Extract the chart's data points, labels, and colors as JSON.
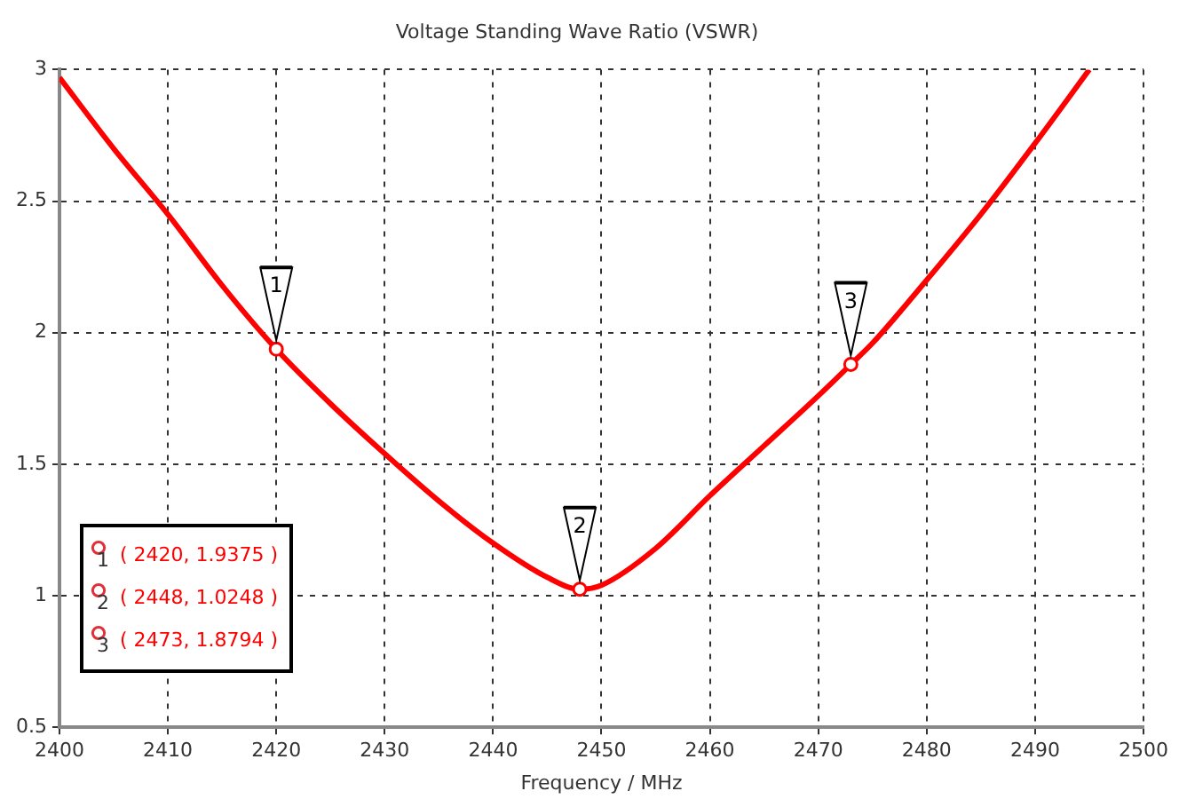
{
  "chart_data": {
    "type": "line",
    "title": "Voltage Standing Wave Ratio (VSWR)",
    "xlabel": "Frequency / MHz",
    "x": [
      2400,
      2405,
      2410,
      2415,
      2420,
      2425,
      2430,
      2435,
      2440,
      2445,
      2448,
      2450,
      2455,
      2460,
      2465,
      2470,
      2473,
      2475,
      2480,
      2485,
      2490,
      2495
    ],
    "values": [
      2.97,
      2.7,
      2.45,
      2.18,
      1.9375,
      1.73,
      1.54,
      1.36,
      1.2,
      1.07,
      1.0248,
      1.04,
      1.18,
      1.38,
      1.57,
      1.76,
      1.8794,
      1.96,
      2.2,
      2.45,
      2.72,
      3.0
    ],
    "color": "#ff0000",
    "marker": "none",
    "line_style": "solid",
    "xlim": [
      2400,
      2500
    ],
    "xticks": [
      2400,
      2410,
      2420,
      2430,
      2440,
      2450,
      2460,
      2470,
      2480,
      2490,
      2500
    ],
    "ylim": [
      0.5,
      3
    ],
    "yticks": [
      0.5,
      1,
      1.5,
      2,
      2.5,
      3
    ],
    "grid": true,
    "annotations": [
      {
        "text": "1",
        "x": 2420,
        "y": 1.9375
      },
      {
        "text": "2",
        "x": 2448,
        "y": 1.0248
      },
      {
        "text": "3",
        "x": 2473,
        "y": 1.8794
      },
      "( 2420, 1.9375 )",
      "( 2448, 1.0248 )",
      "( 2473, 1.8794 )"
    ]
  }
}
